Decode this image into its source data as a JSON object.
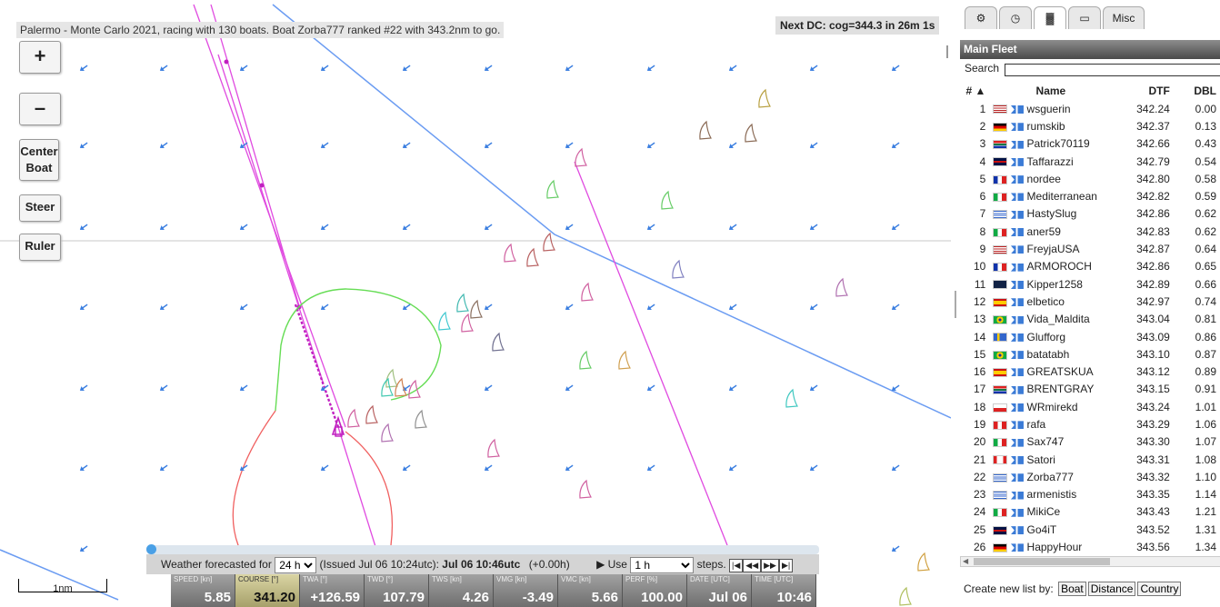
{
  "header": {
    "race_info": "Palermo - Monte Carlo 2021, racing with 130 boats. Boat Zorba777 ranked #22 with 343.2nm to go.",
    "next_dc": "Next DC: cog=344.3 in 26m 1s"
  },
  "map_controls": {
    "zoom_in": "+",
    "zoom_out": "–",
    "center_boat_line1": "Center",
    "center_boat_line2": "Boat",
    "steer": "Steer",
    "ruler": "Ruler"
  },
  "scale_label": "1nm",
  "weather_bar": {
    "forecast_prefix": "Weather forecasted for",
    "forecast_value": "24 h",
    "issued_text": "(Issued Jul 06 10:24utc):",
    "current_time": "Jul 06 10:46utc",
    "offset": "(+0.00h)",
    "use_label": "▶ Use",
    "step_value": "1 h",
    "steps_label": "steps.",
    "nav_first": "|◀",
    "nav_back": "◀◀",
    "nav_fwd": "▶▶",
    "nav_last": "▶|"
  },
  "dashboard": [
    {
      "label": "SPEED [kn]",
      "value": "5.85",
      "highlight": false
    },
    {
      "label": "COURSE [°]",
      "value": "341.20",
      "highlight": true
    },
    {
      "label": "TWA [°]",
      "value": "+126.59",
      "highlight": false
    },
    {
      "label": "TWD [°]",
      "value": "107.79",
      "highlight": false
    },
    {
      "label": "TWS [kn]",
      "value": "4.26",
      "highlight": false
    },
    {
      "label": "VMG [kn]",
      "value": "-3.49",
      "highlight": false
    },
    {
      "label": "VMC [kn]",
      "value": "5.66",
      "highlight": false
    },
    {
      "label": "PERF [%]",
      "value": "100.00",
      "highlight": false
    },
    {
      "label": "DATE [UTC]",
      "value": "Jul 06",
      "highlight": false
    },
    {
      "label": "TIME [UTC]",
      "value": "10:46",
      "highlight": false
    }
  ],
  "panel": {
    "tabs": [
      {
        "icon": "gear-icon",
        "glyph": "⚙"
      },
      {
        "icon": "clock-icon",
        "glyph": "◷"
      },
      {
        "icon": "ranking-icon",
        "glyph": "▓"
      },
      {
        "icon": "chat-icon",
        "glyph": "▭"
      },
      {
        "icon": "misc-tab",
        "glyph": "Misc"
      }
    ],
    "fleet_title": "Main Fleet",
    "search_label": "Search",
    "search_value": "",
    "columns": [
      "# ▲",
      "Name",
      "DTF",
      "DBL"
    ],
    "rows": [
      {
        "rank": "1",
        "flag": "us",
        "name": "wsguerin",
        "dtf": "342.24",
        "dbl": "0.00"
      },
      {
        "rank": "2",
        "flag": "de",
        "name": "rumskib",
        "dtf": "342.37",
        "dbl": "0.13"
      },
      {
        "rank": "3",
        "flag": "za",
        "name": "Patrick70119",
        "dtf": "342.66",
        "dbl": "0.43"
      },
      {
        "rank": "4",
        "flag": "gb",
        "name": "Taffarazzi",
        "dtf": "342.79",
        "dbl": "0.54"
      },
      {
        "rank": "5",
        "flag": "fr",
        "name": "nordee",
        "dtf": "342.80",
        "dbl": "0.58"
      },
      {
        "rank": "6",
        "flag": "it",
        "name": "Mediterranean",
        "dtf": "342.82",
        "dbl": "0.59"
      },
      {
        "rank": "7",
        "flag": "gr",
        "name": "HastySlug",
        "dtf": "342.86",
        "dbl": "0.62"
      },
      {
        "rank": "8",
        "flag": "it",
        "name": "aner59",
        "dtf": "342.83",
        "dbl": "0.62"
      },
      {
        "rank": "9",
        "flag": "us",
        "name": "FreyjaUSA",
        "dtf": "342.87",
        "dbl": "0.64"
      },
      {
        "rank": "10",
        "flag": "fr",
        "name": "ARMOROCH",
        "dtf": "342.86",
        "dbl": "0.65"
      },
      {
        "rank": "11",
        "flag": "au",
        "name": "Kipper1258",
        "dtf": "342.89",
        "dbl": "0.66"
      },
      {
        "rank": "12",
        "flag": "es",
        "name": "elbetico",
        "dtf": "342.97",
        "dbl": "0.74"
      },
      {
        "rank": "13",
        "flag": "br",
        "name": "Vida_Maldita",
        "dtf": "343.04",
        "dbl": "0.81"
      },
      {
        "rank": "14",
        "flag": "se",
        "name": "Glufforg",
        "dtf": "343.09",
        "dbl": "0.86"
      },
      {
        "rank": "15",
        "flag": "br",
        "name": "batatabh",
        "dtf": "343.10",
        "dbl": "0.87"
      },
      {
        "rank": "16",
        "flag": "es",
        "name": "GREATSKUA",
        "dtf": "343.12",
        "dbl": "0.89"
      },
      {
        "rank": "17",
        "flag": "za",
        "name": "BRENTGRAY",
        "dtf": "343.15",
        "dbl": "0.91"
      },
      {
        "rank": "18",
        "flag": "pl",
        "name": "WRmirekd",
        "dtf": "343.24",
        "dbl": "1.01"
      },
      {
        "rank": "19",
        "flag": "pe",
        "name": "rafa",
        "dtf": "343.29",
        "dbl": "1.06"
      },
      {
        "rank": "20",
        "flag": "it",
        "name": "Sax747",
        "dtf": "343.30",
        "dbl": "1.07"
      },
      {
        "rank": "21",
        "flag": "ca",
        "name": "Satori",
        "dtf": "343.31",
        "dbl": "1.08"
      },
      {
        "rank": "22",
        "flag": "gr",
        "name": "Zorba777",
        "dtf": "343.32",
        "dbl": "1.10"
      },
      {
        "rank": "23",
        "flag": "gr",
        "name": "armenistis",
        "dtf": "343.35",
        "dbl": "1.14"
      },
      {
        "rank": "24",
        "flag": "it",
        "name": "MikiCe",
        "dtf": "343.43",
        "dbl": "1.21"
      },
      {
        "rank": "25",
        "flag": "gb",
        "name": "Go4iT",
        "dtf": "343.52",
        "dbl": "1.31"
      },
      {
        "rank": "26",
        "flag": "de",
        "name": "HappyHour",
        "dtf": "343.56",
        "dbl": "1.34"
      }
    ],
    "create_list_label": "Create new list by:",
    "create_buttons": [
      "Boat",
      "Distance",
      "Country"
    ]
  },
  "colors": {
    "course_line": "#6b9cf2",
    "own_track": "#e04ae0",
    "polar_green": "#66dd55",
    "polar_red": "#f06060",
    "wind_arrow": "#3a7ee0"
  }
}
